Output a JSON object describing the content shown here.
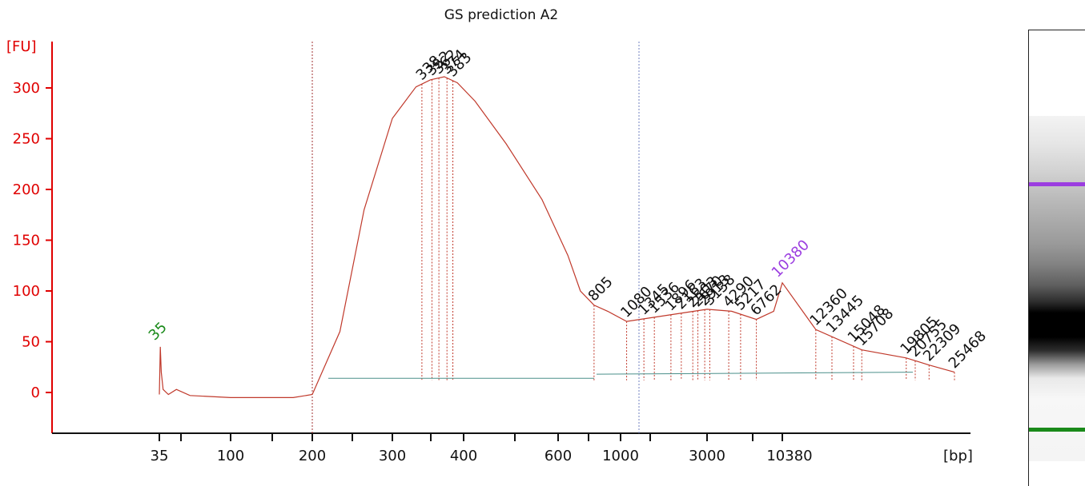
{
  "chart_data": {
    "type": "line",
    "title": "GS prediction A2",
    "ylabel": "[FU]",
    "xlabel": "[bp]",
    "ylim": [
      -40,
      340
    ],
    "yticks": [
      0,
      50,
      100,
      150,
      200,
      250,
      300
    ],
    "xtick_labels": [
      "35",
      "100",
      "200",
      "300",
      "400",
      "600",
      "1000",
      "3000",
      "10380"
    ],
    "colors": {
      "axis": "#e00000",
      "trace": "#c0392b",
      "baseline": "#4a8f8a",
      "lower_marker": "#1a8a1a",
      "upper_marker": "#9b3de0"
    },
    "series": [
      {
        "x": [
          "35",
          "35.5",
          "36",
          "37",
          "40",
          "45",
          "55",
          "75",
          "100",
          "140",
          "170",
          "200",
          "230",
          "260",
          "300",
          "330",
          "350",
          "370",
          "390",
          "420",
          "480",
          "560",
          "650",
          "720",
          "805",
          "900",
          "1080",
          "1800",
          "3000",
          "4500",
          "6762",
          "9000",
          "10380",
          "12360",
          "15708",
          "19805",
          "22309",
          "25468"
        ],
        "y": [
          -2,
          45,
          20,
          3,
          -2,
          3,
          -3,
          -4,
          -5,
          -5,
          -5,
          -2,
          60,
          180,
          270,
          301,
          308,
          311,
          305,
          287,
          245,
          190,
          135,
          100,
          86,
          80,
          70,
          76,
          82,
          80,
          72,
          80,
          108,
          62,
          42,
          34,
          27,
          20
        ]
      }
    ],
    "lower_marker": {
      "label": "35",
      "x": "35",
      "y": 46
    },
    "upper_marker": {
      "label": "10380",
      "x": "10380",
      "y": 108
    },
    "peak_labels": [
      "338",
      "352",
      "362",
      "374",
      "383",
      "805",
      "1080",
      "1345",
      "1536",
      "1896",
      "2163",
      "2503",
      "2670",
      "2913",
      "3138",
      "4290",
      "5217",
      "6762",
      "12360",
      "13445",
      "15048",
      "15708",
      "19805",
      "20755",
      "22309",
      "25468"
    ],
    "gel_bands": {
      "upper": "#9b3de0",
      "lower": "#1a8a1a"
    }
  }
}
